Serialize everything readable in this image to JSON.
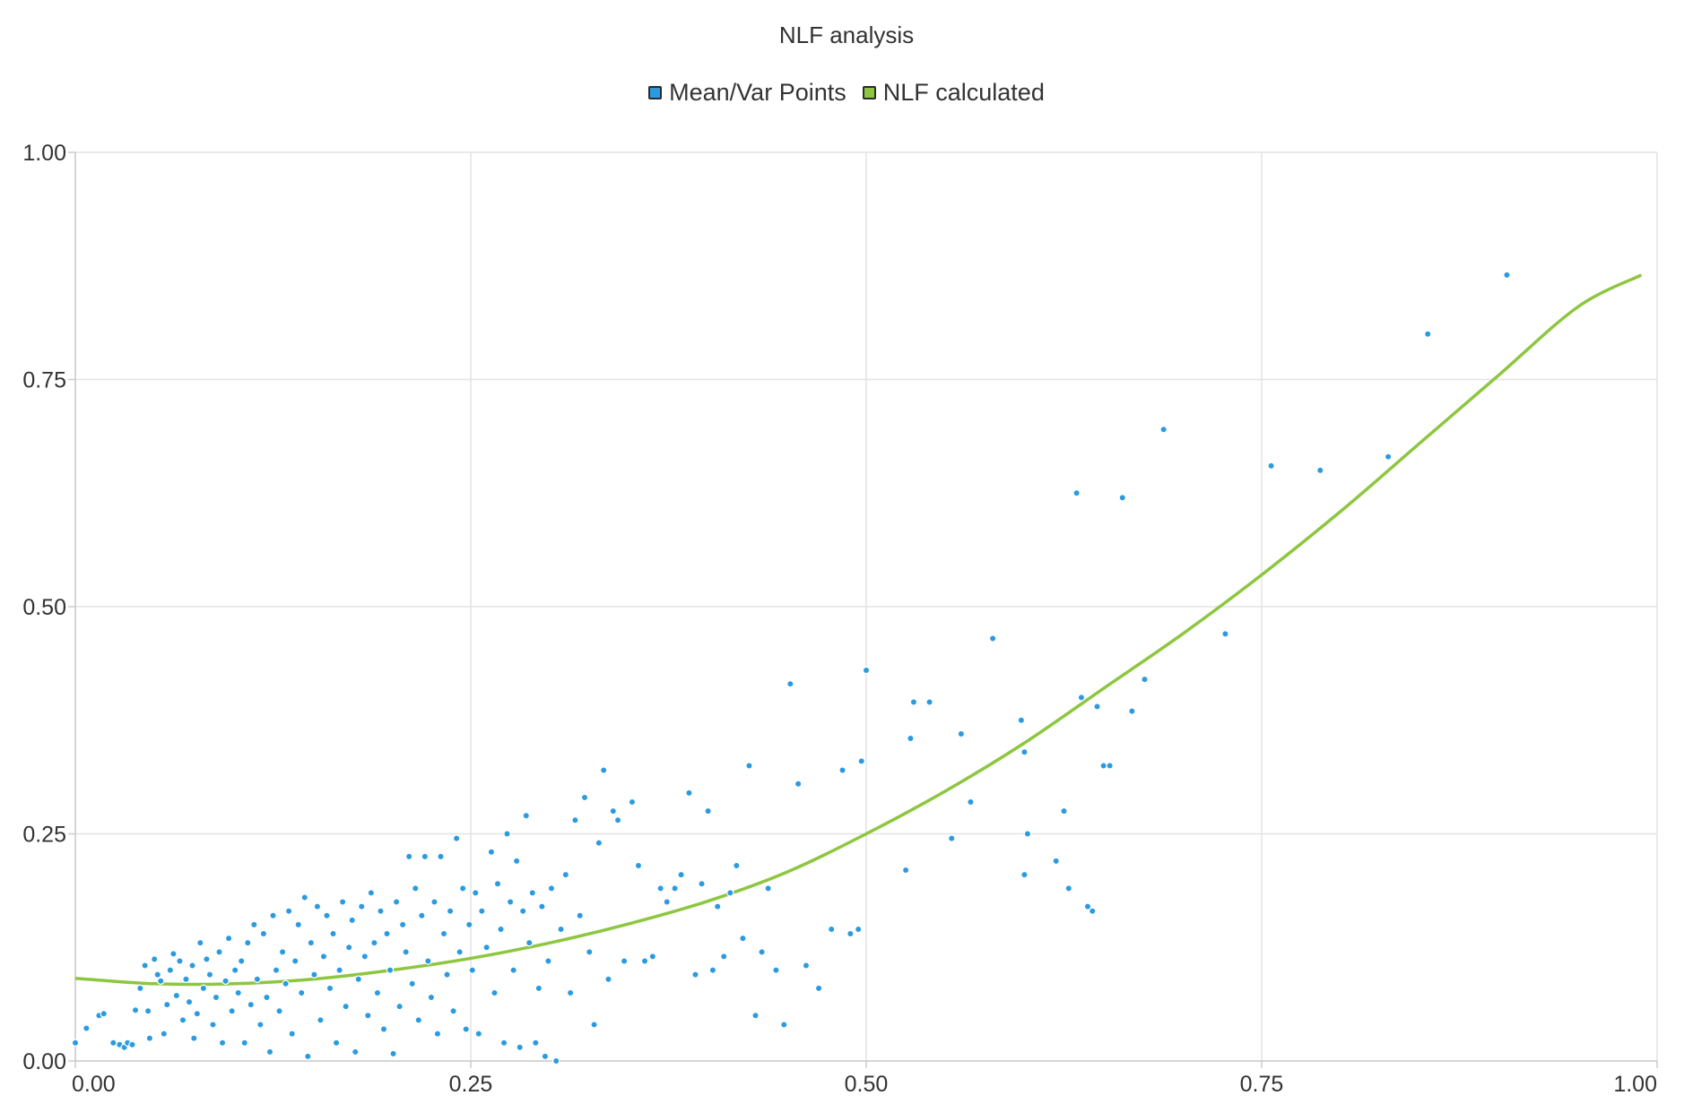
{
  "chart_data": {
    "type": "scatter",
    "title": "NLF analysis",
    "xlabel": "",
    "ylabel": "",
    "xlim": [
      0,
      1
    ],
    "ylim": [
      0,
      1
    ],
    "grid": true,
    "legend_position": "top-center",
    "x_ticks": [
      "0.00",
      "0.25",
      "0.50",
      "0.75",
      "1.00"
    ],
    "y_ticks": [
      "0.00",
      "0.25",
      "0.50",
      "0.75",
      "1.00"
    ],
    "colors": {
      "points": "#2b9be0",
      "curve": "#8dc63f",
      "grid": "#e3e3e3",
      "axis": "#cccccc"
    },
    "series": [
      {
        "name": "Mean/Var Points",
        "type": "scatter",
        "points": [
          [
            0.0,
            0.02
          ],
          [
            0.007,
            0.036
          ],
          [
            0.015,
            0.05
          ],
          [
            0.018,
            0.052
          ],
          [
            0.024,
            0.02
          ],
          [
            0.028,
            0.018
          ],
          [
            0.031,
            0.015
          ],
          [
            0.033,
            0.02
          ],
          [
            0.036,
            0.018
          ],
          [
            0.038,
            0.056
          ],
          [
            0.041,
            0.08
          ],
          [
            0.044,
            0.105
          ],
          [
            0.046,
            0.055
          ],
          [
            0.047,
            0.025
          ],
          [
            0.05,
            0.112
          ],
          [
            0.052,
            0.095
          ],
          [
            0.054,
            0.088
          ],
          [
            0.056,
            0.03
          ],
          [
            0.058,
            0.062
          ],
          [
            0.06,
            0.1
          ],
          [
            0.062,
            0.118
          ],
          [
            0.064,
            0.072
          ],
          [
            0.066,
            0.11
          ],
          [
            0.068,
            0.045
          ],
          [
            0.07,
            0.09
          ],
          [
            0.072,
            0.065
          ],
          [
            0.074,
            0.105
          ],
          [
            0.075,
            0.025
          ],
          [
            0.077,
            0.052
          ],
          [
            0.079,
            0.13
          ],
          [
            0.081,
            0.08
          ],
          [
            0.083,
            0.112
          ],
          [
            0.085,
            0.095
          ],
          [
            0.087,
            0.04
          ],
          [
            0.089,
            0.07
          ],
          [
            0.091,
            0.12
          ],
          [
            0.093,
            0.02
          ],
          [
            0.095,
            0.088
          ],
          [
            0.097,
            0.135
          ],
          [
            0.099,
            0.055
          ],
          [
            0.101,
            0.1
          ],
          [
            0.103,
            0.075
          ],
          [
            0.105,
            0.11
          ],
          [
            0.107,
            0.02
          ],
          [
            0.109,
            0.13
          ],
          [
            0.111,
            0.062
          ],
          [
            0.113,
            0.15
          ],
          [
            0.115,
            0.09
          ],
          [
            0.117,
            0.04
          ],
          [
            0.119,
            0.14
          ],
          [
            0.121,
            0.07
          ],
          [
            0.123,
            0.01
          ],
          [
            0.125,
            0.16
          ],
          [
            0.127,
            0.1
          ],
          [
            0.129,
            0.055
          ],
          [
            0.131,
            0.12
          ],
          [
            0.133,
            0.085
          ],
          [
            0.135,
            0.165
          ],
          [
            0.137,
            0.03
          ],
          [
            0.139,
            0.11
          ],
          [
            0.141,
            0.15
          ],
          [
            0.143,
            0.075
          ],
          [
            0.145,
            0.18
          ],
          [
            0.147,
            0.005
          ],
          [
            0.149,
            0.13
          ],
          [
            0.151,
            0.095
          ],
          [
            0.153,
            0.17
          ],
          [
            0.155,
            0.045
          ],
          [
            0.157,
            0.115
          ],
          [
            0.159,
            0.16
          ],
          [
            0.161,
            0.08
          ],
          [
            0.163,
            0.14
          ],
          [
            0.165,
            0.02
          ],
          [
            0.167,
            0.1
          ],
          [
            0.169,
            0.175
          ],
          [
            0.171,
            0.06
          ],
          [
            0.173,
            0.125
          ],
          [
            0.175,
            0.155
          ],
          [
            0.177,
            0.01
          ],
          [
            0.179,
            0.09
          ],
          [
            0.181,
            0.17
          ],
          [
            0.183,
            0.115
          ],
          [
            0.185,
            0.05
          ],
          [
            0.187,
            0.185
          ],
          [
            0.189,
            0.13
          ],
          [
            0.191,
            0.075
          ],
          [
            0.193,
            0.165
          ],
          [
            0.195,
            0.035
          ],
          [
            0.197,
            0.14
          ],
          [
            0.199,
            0.1
          ],
          [
            0.201,
            0.008
          ],
          [
            0.203,
            0.175
          ],
          [
            0.205,
            0.06
          ],
          [
            0.207,
            0.15
          ],
          [
            0.209,
            0.12
          ],
          [
            0.211,
            0.225
          ],
          [
            0.213,
            0.085
          ],
          [
            0.215,
            0.19
          ],
          [
            0.217,
            0.045
          ],
          [
            0.219,
            0.16
          ],
          [
            0.221,
            0.225
          ],
          [
            0.223,
            0.11
          ],
          [
            0.225,
            0.07
          ],
          [
            0.227,
            0.175
          ],
          [
            0.229,
            0.03
          ],
          [
            0.231,
            0.225
          ],
          [
            0.233,
            0.14
          ],
          [
            0.235,
            0.095
          ],
          [
            0.237,
            0.165
          ],
          [
            0.239,
            0.055
          ],
          [
            0.241,
            0.245
          ],
          [
            0.243,
            0.12
          ],
          [
            0.245,
            0.19
          ],
          [
            0.247,
            0.035
          ],
          [
            0.249,
            0.15
          ],
          [
            0.251,
            0.1
          ],
          [
            0.253,
            0.185
          ],
          [
            0.255,
            0.03
          ],
          [
            0.257,
            0.165
          ],
          [
            0.26,
            0.125
          ],
          [
            0.263,
            0.23
          ],
          [
            0.265,
            0.075
          ],
          [
            0.267,
            0.195
          ],
          [
            0.269,
            0.145
          ],
          [
            0.271,
            0.02
          ],
          [
            0.273,
            0.25
          ],
          [
            0.275,
            0.175
          ],
          [
            0.277,
            0.1
          ],
          [
            0.279,
            0.22
          ],
          [
            0.281,
            0.015
          ],
          [
            0.283,
            0.165
          ],
          [
            0.285,
            0.27
          ],
          [
            0.287,
            0.13
          ],
          [
            0.289,
            0.185
          ],
          [
            0.291,
            0.02
          ],
          [
            0.293,
            0.08
          ],
          [
            0.295,
            0.17
          ],
          [
            0.297,
            0.005
          ],
          [
            0.299,
            0.11
          ],
          [
            0.301,
            0.19
          ],
          [
            0.304,
            0.0
          ],
          [
            0.307,
            0.145
          ],
          [
            0.31,
            0.205
          ],
          [
            0.313,
            0.075
          ],
          [
            0.316,
            0.265
          ],
          [
            0.319,
            0.16
          ],
          [
            0.322,
            0.29
          ],
          [
            0.325,
            0.12
          ],
          [
            0.328,
            0.04
          ],
          [
            0.331,
            0.24
          ],
          [
            0.334,
            0.32
          ],
          [
            0.337,
            0.09
          ],
          [
            0.34,
            0.275
          ],
          [
            0.343,
            0.265
          ],
          [
            0.347,
            0.11
          ],
          [
            0.352,
            0.285
          ],
          [
            0.356,
            0.215
          ],
          [
            0.36,
            0.11
          ],
          [
            0.365,
            0.115
          ],
          [
            0.37,
            0.19
          ],
          [
            0.374,
            0.175
          ],
          [
            0.379,
            0.19
          ],
          [
            0.383,
            0.205
          ],
          [
            0.388,
            0.295
          ],
          [
            0.392,
            0.095
          ],
          [
            0.396,
            0.195
          ],
          [
            0.4,
            0.275
          ],
          [
            0.403,
            0.1
          ],
          [
            0.406,
            0.17
          ],
          [
            0.41,
            0.115
          ],
          [
            0.414,
            0.185
          ],
          [
            0.418,
            0.215
          ],
          [
            0.422,
            0.135
          ],
          [
            0.426,
            0.325
          ],
          [
            0.43,
            0.05
          ],
          [
            0.434,
            0.12
          ],
          [
            0.438,
            0.19
          ],
          [
            0.443,
            0.1
          ],
          [
            0.448,
            0.04
          ],
          [
            0.452,
            0.415
          ],
          [
            0.457,
            0.305
          ],
          [
            0.462,
            0.105
          ],
          [
            0.47,
            0.08
          ],
          [
            0.478,
            0.145
          ],
          [
            0.485,
            0.32
          ],
          [
            0.49,
            0.14
          ],
          [
            0.495,
            0.145
          ],
          [
            0.497,
            0.33
          ],
          [
            0.5,
            0.43
          ],
          [
            0.525,
            0.21
          ],
          [
            0.528,
            0.355
          ],
          [
            0.53,
            0.395
          ],
          [
            0.54,
            0.395
          ],
          [
            0.554,
            0.245
          ],
          [
            0.56,
            0.36
          ],
          [
            0.566,
            0.285
          ],
          [
            0.58,
            0.465
          ],
          [
            0.6,
            0.205
          ],
          [
            0.6,
            0.34
          ],
          [
            0.602,
            0.25
          ],
          [
            0.598,
            0.375
          ],
          [
            0.62,
            0.22
          ],
          [
            0.625,
            0.275
          ],
          [
            0.628,
            0.19
          ],
          [
            0.633,
            0.625
          ],
          [
            0.636,
            0.4
          ],
          [
            0.64,
            0.17
          ],
          [
            0.643,
            0.165
          ],
          [
            0.646,
            0.39
          ],
          [
            0.65,
            0.325
          ],
          [
            0.654,
            0.325
          ],
          [
            0.662,
            0.62
          ],
          [
            0.668,
            0.385
          ],
          [
            0.676,
            0.42
          ],
          [
            0.688,
            0.695
          ],
          [
            0.727,
            0.47
          ],
          [
            0.756,
            0.655
          ],
          [
            0.787,
            0.65
          ],
          [
            0.83,
            0.665
          ],
          [
            0.855,
            0.8
          ],
          [
            0.905,
            0.865
          ]
        ]
      },
      {
        "name": "NLF calculated",
        "type": "line",
        "x": [
          0.0,
          0.05,
          0.1,
          0.15,
          0.2,
          0.25,
          0.3,
          0.35,
          0.4,
          0.45,
          0.5,
          0.55,
          0.6,
          0.65,
          0.7,
          0.75,
          0.8,
          0.85,
          0.9,
          0.95,
          0.99
        ],
        "y": [
          0.091,
          0.085,
          0.085,
          0.09,
          0.1,
          0.113,
          0.13,
          0.151,
          0.176,
          0.208,
          0.25,
          0.297,
          0.35,
          0.41,
          0.47,
          0.535,
          0.605,
          0.68,
          0.755,
          0.83,
          0.865
        ]
      }
    ]
  }
}
